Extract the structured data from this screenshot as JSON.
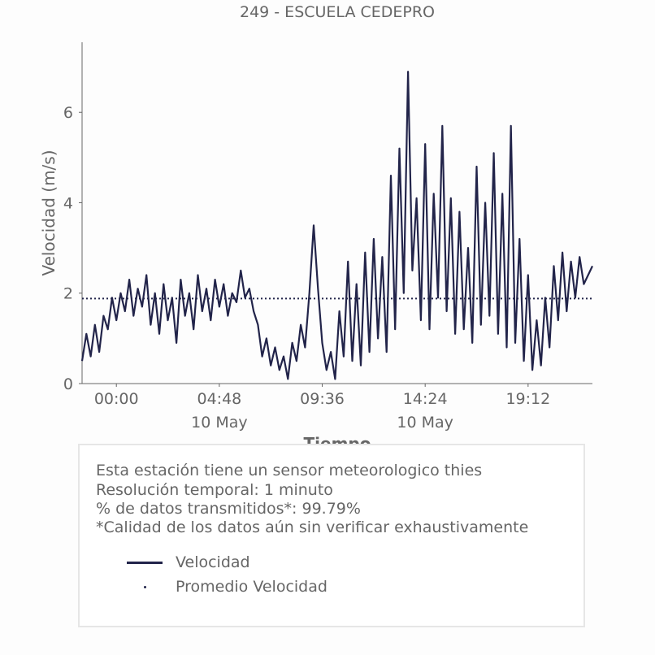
{
  "chart_data": {
    "type": "line",
    "title": "249 - ESCUELA CEDEPRO",
    "xlabel": "Tiempo",
    "ylabel": "Velocidad (m/s)",
    "x_unit": "hours since 9 May 00:00",
    "xlim": [
      22.4,
      46.2
    ],
    "ylim": [
      0,
      7.55
    ],
    "yticks": [
      0,
      2,
      4,
      6
    ],
    "xticks": [
      {
        "x": 24.0,
        "label": "00:00",
        "sublabel": ""
      },
      {
        "x": 28.8,
        "label": "04:48",
        "sublabel": "10 May"
      },
      {
        "x": 33.6,
        "label": "09:36",
        "sublabel": ""
      },
      {
        "x": 38.4,
        "label": "14:24",
        "sublabel": "10 May"
      },
      {
        "x": 43.2,
        "label": "19:12",
        "sublabel": ""
      }
    ],
    "series": [
      {
        "name": "Velocidad",
        "color": "#22244a",
        "x": [
          22.4,
          22.6,
          22.8,
          23.0,
          23.2,
          23.4,
          23.6,
          23.8,
          24.0,
          24.2,
          24.4,
          24.6,
          24.8,
          25.0,
          25.2,
          25.4,
          25.6,
          25.8,
          26.0,
          26.2,
          26.4,
          26.6,
          26.8,
          27.0,
          27.2,
          27.4,
          27.6,
          27.8,
          28.0,
          28.2,
          28.4,
          28.6,
          28.8,
          29.0,
          29.2,
          29.4,
          29.6,
          29.8,
          30.0,
          30.2,
          30.4,
          30.6,
          30.8,
          31.0,
          31.2,
          31.4,
          31.6,
          31.8,
          32.0,
          32.2,
          32.4,
          32.6,
          32.8,
          33.0,
          33.2,
          33.4,
          33.6,
          33.8,
          34.0,
          34.2,
          34.4,
          34.6,
          34.8,
          35.0,
          35.2,
          35.4,
          35.6,
          35.8,
          36.0,
          36.2,
          36.4,
          36.6,
          36.8,
          37.0,
          37.2,
          37.4,
          37.6,
          37.8,
          38.0,
          38.2,
          38.4,
          38.6,
          38.8,
          39.0,
          39.2,
          39.4,
          39.6,
          39.8,
          40.0,
          40.2,
          40.4,
          40.6,
          40.8,
          41.0,
          41.2,
          41.4,
          41.6,
          41.8,
          42.0,
          42.2,
          42.4,
          42.6,
          42.8,
          43.0,
          43.2,
          43.4,
          43.6,
          43.8,
          44.0,
          44.2,
          44.4,
          44.6,
          44.8,
          45.0,
          45.2,
          45.4,
          45.6,
          45.8,
          46.0,
          46.2
        ],
        "y": [
          0.5,
          1.1,
          0.6,
          1.3,
          0.7,
          1.5,
          1.2,
          1.9,
          1.4,
          2.0,
          1.6,
          2.3,
          1.5,
          2.1,
          1.7,
          2.4,
          1.3,
          2.0,
          1.1,
          2.2,
          1.4,
          1.9,
          0.9,
          2.3,
          1.5,
          2.0,
          1.2,
          2.4,
          1.6,
          2.1,
          1.4,
          2.3,
          1.7,
          2.2,
          1.5,
          2.0,
          1.8,
          2.5,
          1.9,
          2.1,
          1.6,
          1.3,
          0.6,
          1.0,
          0.4,
          0.8,
          0.3,
          0.6,
          0.1,
          0.9,
          0.5,
          1.3,
          0.8,
          2.0,
          3.5,
          2.1,
          0.9,
          0.3,
          0.7,
          0.1,
          1.6,
          0.6,
          2.7,
          0.5,
          2.2,
          0.4,
          2.9,
          0.7,
          3.2,
          1.0,
          2.8,
          0.7,
          4.6,
          1.2,
          5.2,
          2.0,
          6.9,
          2.5,
          4.1,
          1.4,
          5.3,
          1.2,
          4.2,
          1.9,
          5.7,
          1.6,
          4.1,
          1.1,
          3.8,
          1.2,
          3.0,
          0.9,
          4.8,
          1.3,
          4.0,
          1.5,
          5.1,
          1.1,
          4.2,
          0.8,
          5.7,
          0.9,
          3.2,
          0.5,
          2.4,
          0.3,
          1.4,
          0.4,
          1.9,
          0.8,
          2.6,
          1.4,
          2.9,
          1.6,
          2.7,
          1.9,
          2.8,
          2.2,
          2.4,
          2.6
        ]
      },
      {
        "name": "Promedio Velocidad",
        "color": "#22244a",
        "style": "dotted",
        "x": [
          22.4,
          46.2
        ],
        "y": [
          1.88,
          1.88
        ]
      }
    ],
    "legend": "below"
  },
  "info": {
    "lines": [
      "Esta estación tiene un sensor meteorologico thies",
      "Resolución temporal: 1 minuto",
      "% de datos transmitidos*: 99.79%",
      "*Calidad de los datos aún sin verificar exhaustivamente"
    ]
  },
  "legend": {
    "items": [
      {
        "label": "Velocidad",
        "marker": "line"
      },
      {
        "label": "Promedio Velocidad",
        "marker": "dot"
      }
    ]
  },
  "colors": {
    "series": "#22244a",
    "text": "#666666",
    "axis": "#666666",
    "box_border": "#e6e6e6"
  }
}
